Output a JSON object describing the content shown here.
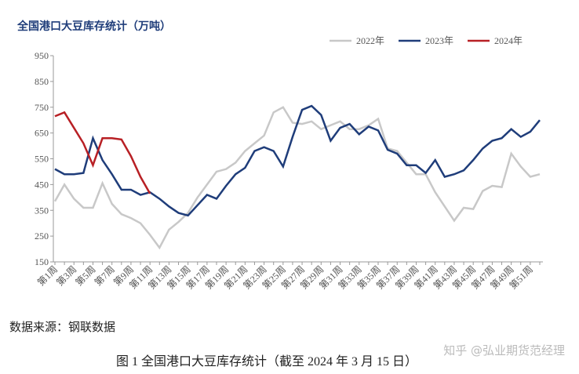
{
  "chart_data": {
    "type": "line",
    "title": "全国港口大豆库存统计（万吨）",
    "categories": [
      "第1周",
      null,
      "第3周",
      null,
      "第5周",
      null,
      "第7周",
      null,
      "第9周",
      null,
      "第11周",
      null,
      "第13周",
      null,
      "第15周",
      null,
      "第17周",
      null,
      "第19周",
      null,
      "第21周",
      null,
      "第23周",
      null,
      "第25周",
      null,
      "第27周",
      null,
      "第29周",
      null,
      "第31周",
      null,
      "第33周",
      null,
      "第35周",
      null,
      "第37周",
      null,
      "第39周",
      null,
      "第41周",
      null,
      "第43周",
      null,
      "第45周",
      null,
      "第47周",
      null,
      "第49周",
      null,
      "第51周",
      null
    ],
    "series": [
      {
        "name": "2022年",
        "color": "#c8c8c8",
        "values": [
          385,
          450,
          395,
          360,
          360,
          455,
          375,
          335,
          320,
          300,
          255,
          205,
          275,
          305,
          340,
          400,
          450,
          500,
          510,
          535,
          580,
          610,
          640,
          730,
          750,
          690,
          685,
          695,
          665,
          680,
          695,
          665,
          665,
          680,
          705,
          590,
          580,
          535,
          490,
          490,
          420,
          365,
          310,
          360,
          355,
          425,
          445,
          440,
          570,
          520,
          480,
          490
        ]
      },
      {
        "name": "2023年",
        "color": "#1f3d7a",
        "values": [
          510,
          490,
          490,
          495,
          630,
          545,
          490,
          430,
          430,
          410,
          420,
          395,
          365,
          340,
          330,
          370,
          410,
          395,
          445,
          490,
          515,
          580,
          595,
          580,
          520,
          635,
          740,
          755,
          720,
          620,
          670,
          685,
          645,
          675,
          660,
          585,
          570,
          525,
          525,
          495,
          545,
          480,
          490,
          505,
          545,
          590,
          620,
          630,
          665,
          635,
          655,
          700
        ]
      },
      {
        "name": "2024年",
        "color": "#b82025",
        "values": [
          715,
          730,
          670,
          610,
          525,
          630,
          630,
          625,
          560,
          480,
          415,
          null,
          null,
          null,
          null,
          null,
          null,
          null,
          null,
          null,
          null,
          null,
          null,
          null,
          null,
          null,
          null,
          null,
          null,
          null,
          null,
          null,
          null,
          null,
          null,
          null,
          null,
          null,
          null,
          null,
          null,
          null,
          null,
          null,
          null,
          null,
          null,
          null,
          null,
          null,
          null,
          null
        ]
      }
    ],
    "ylim": [
      150,
      950
    ],
    "yticks": [
      150,
      250,
      350,
      450,
      550,
      650,
      750,
      850,
      950
    ],
    "legend": "top-right",
    "source": "数据来源：钢联数据",
    "caption": "图 1  全国港口大豆库存统计（截至 2024 年 3 月 15 日）",
    "watermark": "知乎 @弘业期货范经理"
  }
}
